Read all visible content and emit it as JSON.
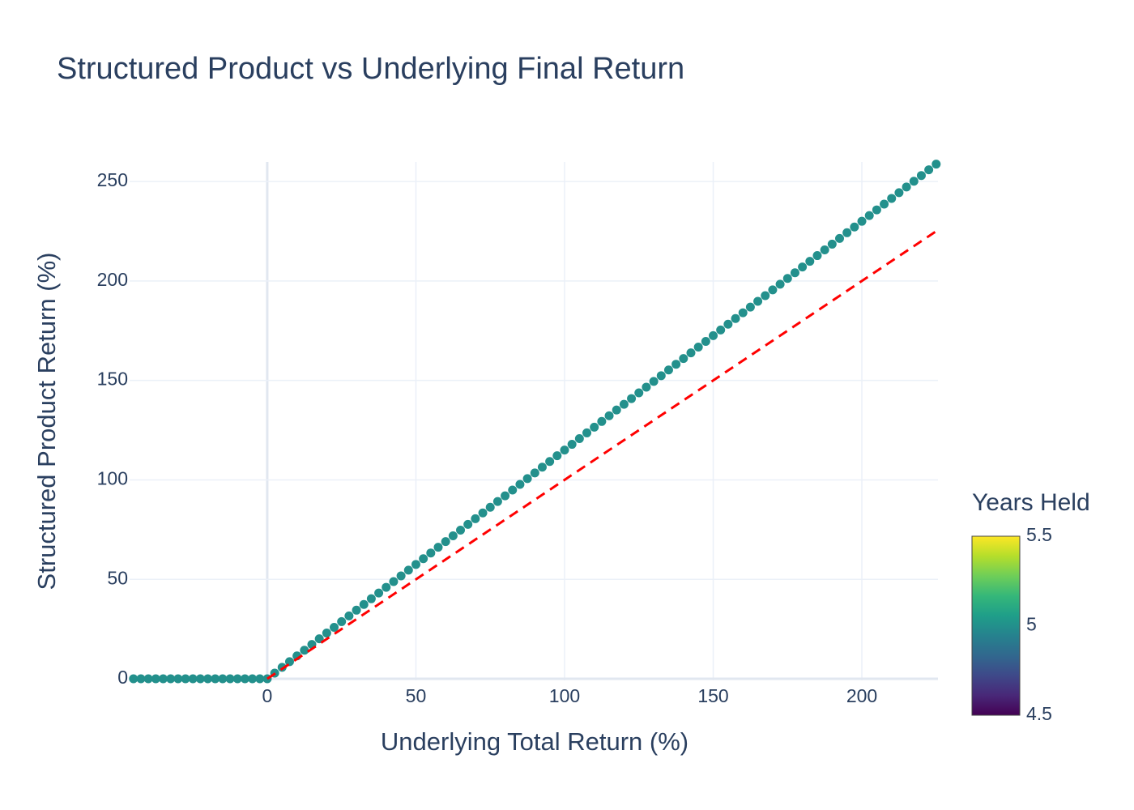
{
  "chart_data": {
    "type": "scatter",
    "title": "Structured Product vs Underlying Final Return",
    "x_label": "Underlying Total Return (%)",
    "y_label": "Structured Product Return (%)",
    "xlim": [
      -46.3,
      225.6
    ],
    "ylim": [
      -0.8,
      259.8
    ],
    "xticks": [
      0,
      50,
      100,
      150,
      200
    ],
    "yticks": [
      0,
      50,
      100,
      150,
      200,
      250
    ],
    "grid": true,
    "series": [
      {
        "color_value": 5,
        "x": [
          -45,
          -42.5,
          -40,
          -37.5,
          -35,
          -32.5,
          -30,
          -27.5,
          -25,
          -22.5,
          -20,
          -17.5,
          -15,
          -12.5,
          -10,
          -7.5,
          -5,
          -2.5,
          0,
          2.5,
          5,
          7.5,
          10,
          12.5,
          15,
          17.5,
          20,
          22.5,
          25,
          27.5,
          30,
          32.5,
          35,
          37.5,
          40,
          42.5,
          45,
          47.5,
          50,
          52.5,
          55,
          57.5,
          60,
          62.5,
          65,
          67.5,
          70,
          72.5,
          75,
          77.5,
          80,
          82.5,
          85,
          87.5,
          90,
          92.5,
          95,
          97.5,
          100,
          102.5,
          105,
          107.5,
          110,
          112.5,
          115,
          117.5,
          120,
          122.5,
          125,
          127.5,
          130,
          132.5,
          135,
          137.5,
          140,
          142.5,
          145,
          147.5,
          150,
          152.5,
          155,
          157.5,
          160,
          162.5,
          165,
          167.5,
          170,
          172.5,
          175,
          177.5,
          180,
          182.5,
          185,
          187.5,
          190,
          192.5,
          195,
          197.5,
          200,
          202.5,
          205,
          207.5,
          210,
          212.5,
          215,
          217.5,
          220,
          222.5,
          225
        ],
        "values": [
          0,
          0,
          0,
          0,
          0,
          0,
          0,
          0,
          0,
          0,
          0,
          0,
          0,
          0,
          0,
          0,
          0,
          0,
          0,
          2.875,
          5.75,
          8.625,
          11.5,
          14.375,
          17.25,
          20.125,
          23,
          25.875,
          28.75,
          31.625,
          34.5,
          37.375,
          40.25,
          43.125,
          46,
          48.875,
          51.75,
          54.625,
          57.5,
          60.375,
          63.25,
          66.125,
          69,
          71.875,
          74.75,
          77.625,
          80.5,
          83.375,
          86.25,
          89.125,
          92,
          94.875,
          97.75,
          100.625,
          103.5,
          106.375,
          109.25,
          112.125,
          115,
          117.875,
          120.75,
          123.625,
          126.5,
          129.375,
          132.25,
          135.125,
          138,
          140.875,
          143.75,
          146.625,
          149.5,
          152.375,
          155.25,
          158.125,
          161,
          163.875,
          166.75,
          169.625,
          172.5,
          175.375,
          178.25,
          181.125,
          184,
          186.875,
          189.75,
          192.625,
          195.5,
          198.375,
          201.25,
          204.125,
          207,
          209.875,
          212.75,
          215.625,
          218.5,
          221.375,
          224.25,
          227.125,
          230,
          232.875,
          235.75,
          238.625,
          241.5,
          244.375,
          247.25,
          250.125,
          253,
          255.875,
          258.75
        ]
      }
    ],
    "reference_line": {
      "x": [
        0,
        225.6
      ],
      "values": [
        0,
        225.6
      ],
      "color": "#ff0000",
      "dash": true
    },
    "colorbar": {
      "title": "Years Held",
      "range": [
        4.5,
        5.5
      ],
      "ticks": [
        4.5,
        5,
        5.5
      ],
      "colorscale": [
        "#440154",
        "#482878",
        "#3e4989",
        "#31688e",
        "#26828e",
        "#1f9e89",
        "#35b779",
        "#6ece58",
        "#b5de2b",
        "#fde725"
      ]
    }
  }
}
